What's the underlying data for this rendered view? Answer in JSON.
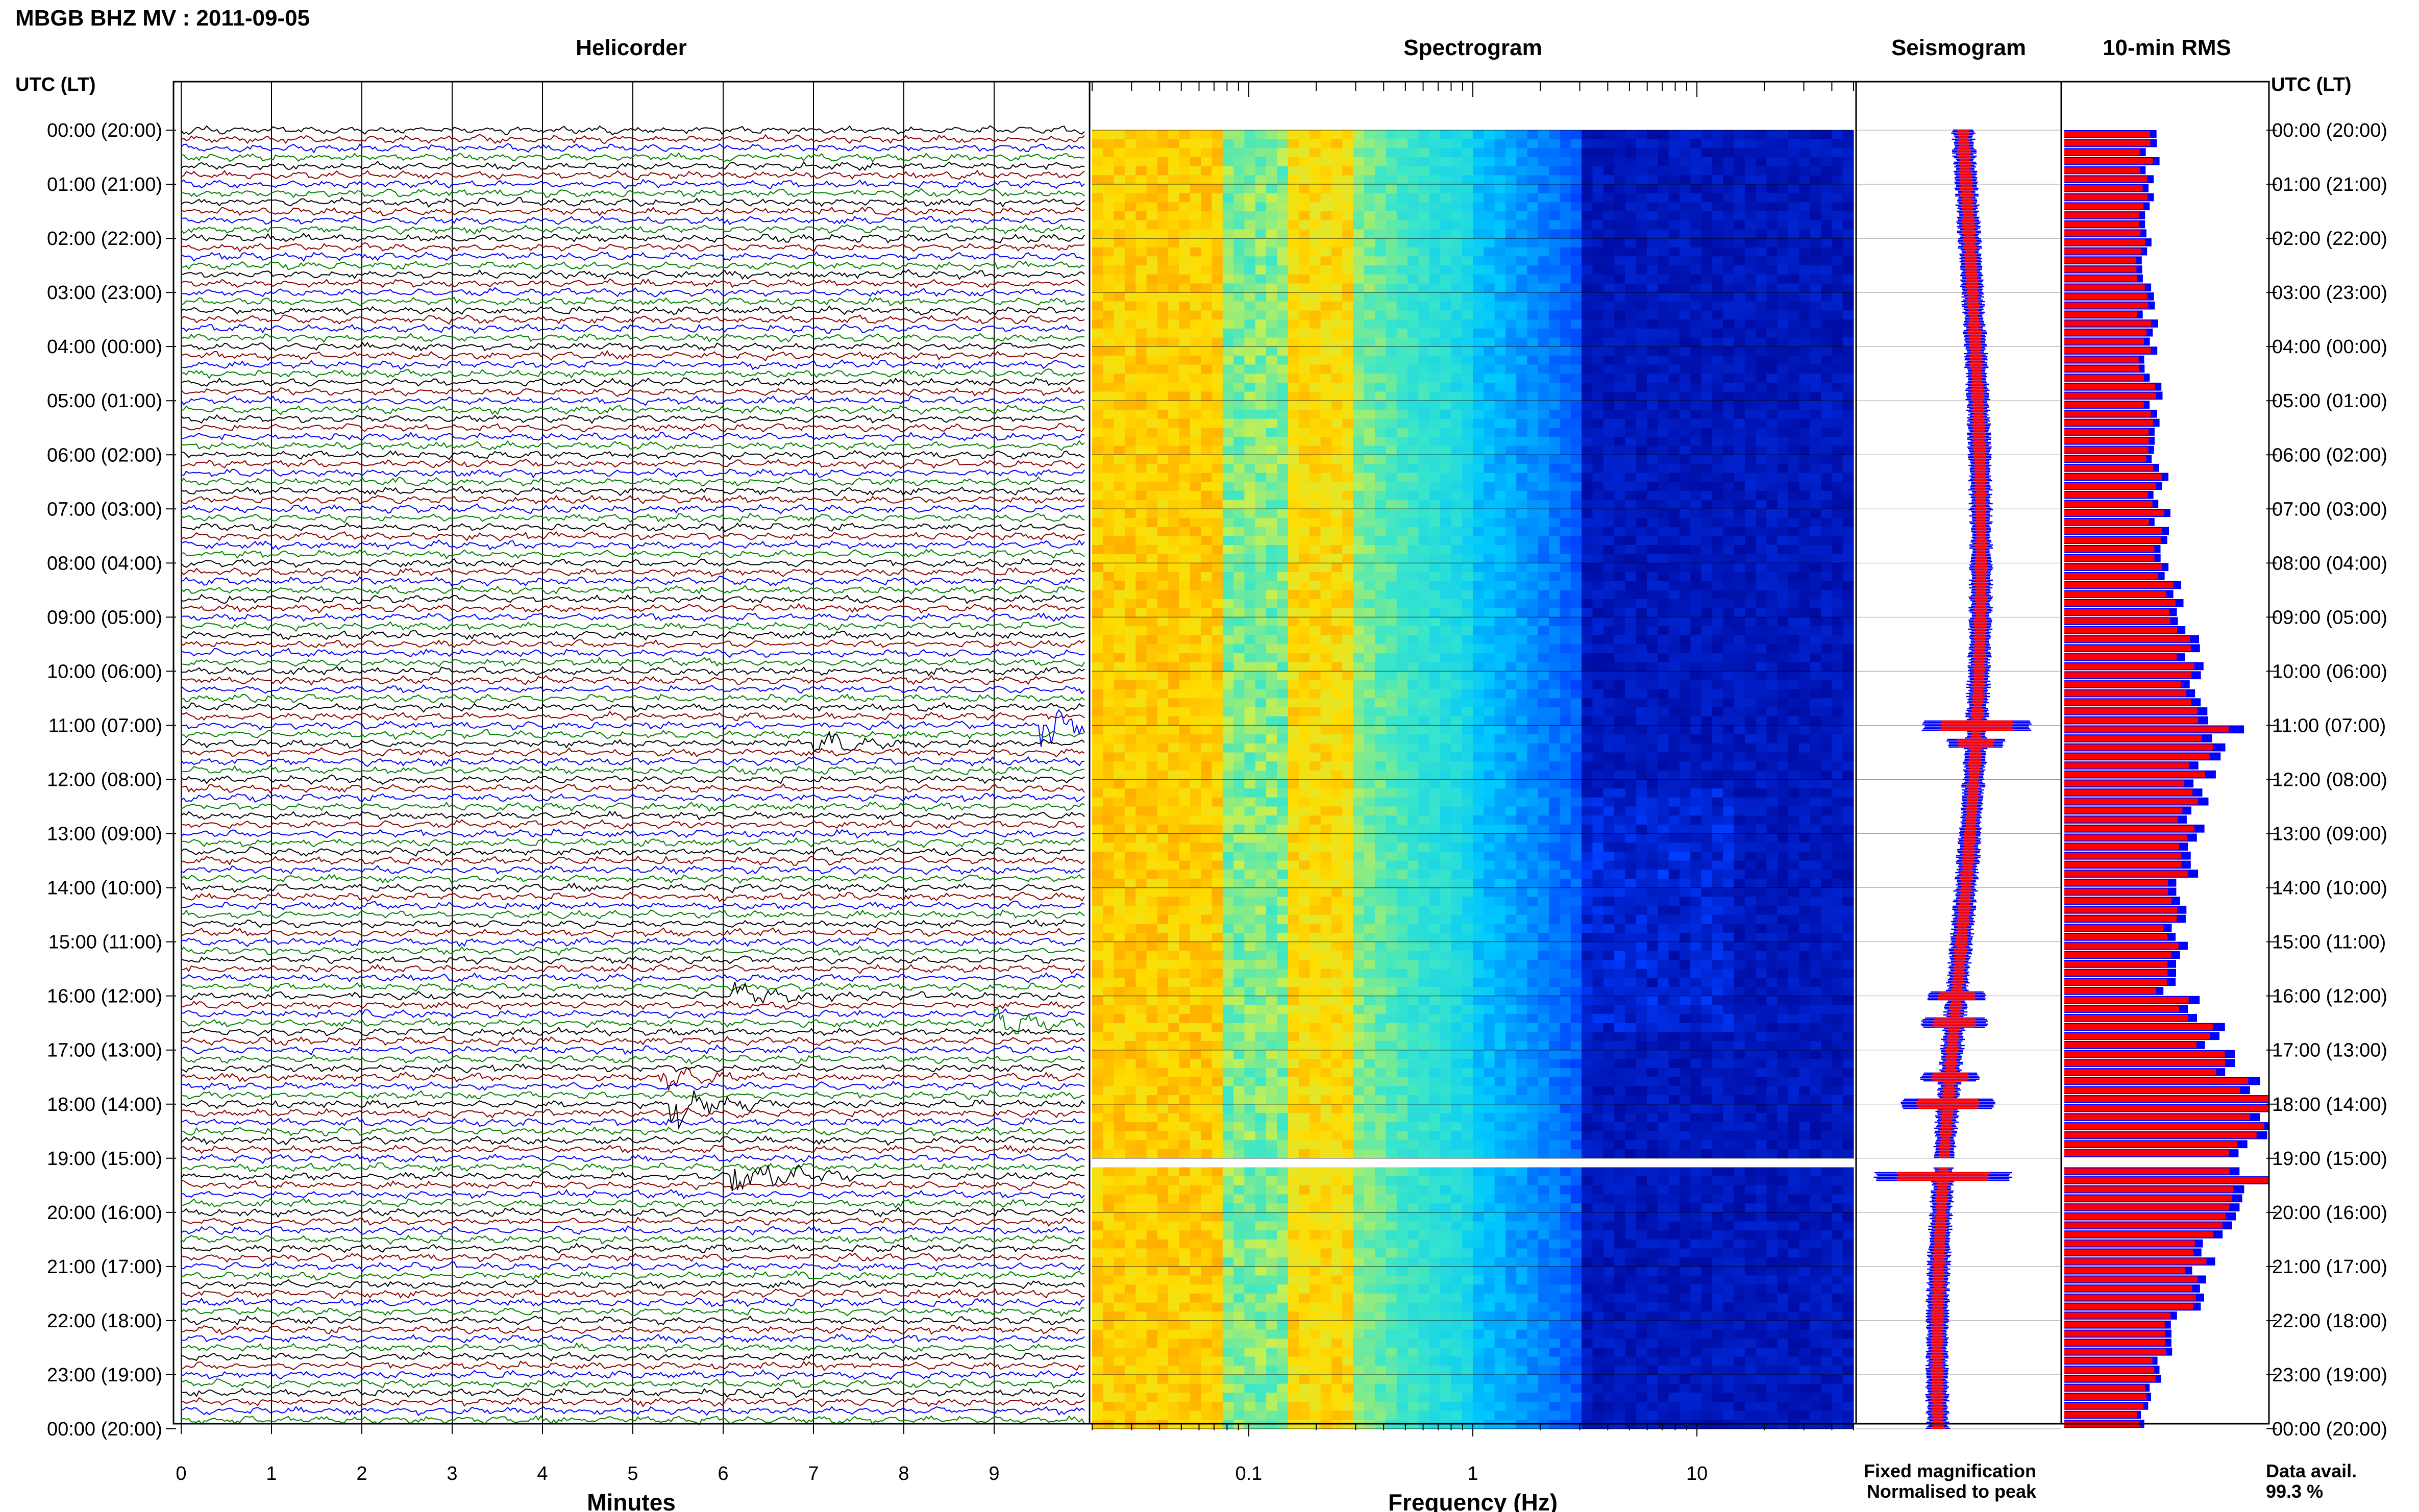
{
  "header": {
    "title": "MBGB BHZ MV : 2011-09-05"
  },
  "panels": {
    "helicorder_title": "Helicorder",
    "spectrogram_title": "Spectrogram",
    "seismogram_title": "Seismogram",
    "rms_title": "10-min RMS"
  },
  "axes": {
    "time_axis_label": "UTC (LT)",
    "time_ticks": [
      "00:00 (20:00)",
      "01:00 (21:00)",
      "02:00 (22:00)",
      "03:00 (23:00)",
      "04:00 (00:00)",
      "05:00 (01:00)",
      "06:00 (02:00)",
      "07:00 (03:00)",
      "08:00 (04:00)",
      "09:00 (05:00)",
      "10:00 (06:00)",
      "11:00 (07:00)",
      "12:00 (08:00)",
      "13:00 (09:00)",
      "14:00 (10:00)",
      "15:00 (11:00)",
      "16:00 (12:00)",
      "17:00 (13:00)",
      "18:00 (14:00)",
      "19:00 (15:00)",
      "20:00 (16:00)",
      "21:00 (17:00)",
      "22:00 (18:00)",
      "23:00 (19:00)",
      "00:00 (20:00)"
    ],
    "minutes_label": "Minutes",
    "minutes_ticks": [
      "0",
      "1",
      "2",
      "3",
      "4",
      "5",
      "6",
      "7",
      "8",
      "9"
    ],
    "frequency_label": "Frequency (Hz)",
    "frequency_ticks": [
      "0.1",
      "1",
      "10"
    ]
  },
  "legend": {
    "fixed_label": "Fixed magnification",
    "normalised_label": "Normalised to peak",
    "fixed_color": "#0000ff",
    "normalised_color": "#ff0000"
  },
  "availability": {
    "label": "Data avail.",
    "value": "99.3 %"
  },
  "colors": {
    "helicorder_traces": [
      "#000000",
      "#8b0000",
      "#0000ff",
      "#008000"
    ],
    "spectrogram_low": "#00008b",
    "spectrogram_high": "#ff7700"
  },
  "chart_data": {
    "type": "heatmap",
    "x_axis_minutes": [
      0,
      10
    ],
    "frequency_range_hz": [
      0.02,
      50
    ],
    "frequency_scale": "log",
    "data_gap_utc": [
      "19:00",
      "19:10"
    ],
    "events": [
      {
        "utc": "11:00",
        "minute": 9.5,
        "amplitude": 0.6
      },
      {
        "utc": "11:20",
        "minute": 6.9,
        "amplitude": 0.25
      },
      {
        "utc": "16:00",
        "minute": 6.1,
        "amplitude": 0.25
      },
      {
        "utc": "16:30",
        "minute": 9.0,
        "amplitude": 0.3
      },
      {
        "utc": "17:30",
        "minute": 5.3,
        "amplitude": 0.25
      },
      {
        "utc": "18:00",
        "minute": 5.4,
        "amplitude": 0.5
      },
      {
        "utc": "19:20",
        "minute": 6.1,
        "amplitude": 0.8
      }
    ],
    "rms_series": [
      {
        "utc_start": "00:00",
        "fixed": 0.43,
        "normalised": 0.4
      },
      {
        "utc_start": "03:00",
        "fixed": 0.41,
        "normalised": 0.38
      },
      {
        "utc_start": "07:00",
        "fixed": 0.48,
        "normalised": 0.45
      },
      {
        "utc_start": "11:20",
        "fixed": 0.71,
        "normalised": 0.66
      },
      {
        "utc_start": "15:50",
        "fixed": 0.52,
        "normalised": 0.48
      },
      {
        "utc_start": "18:00",
        "fixed": 1.0,
        "normalised": 0.95
      },
      {
        "utc_start": "19:30",
        "fixed": 0.85,
        "normalised": 0.8
      },
      {
        "utc_start": "23:50",
        "fixed": 0.37,
        "normalised": 0.35
      }
    ]
  }
}
